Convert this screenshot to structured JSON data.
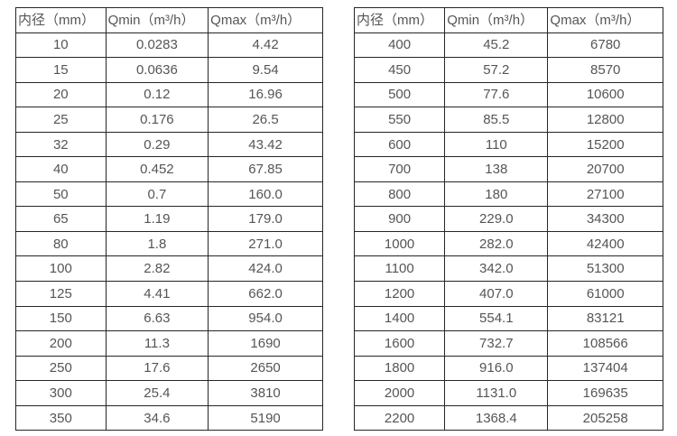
{
  "colors": {
    "background": "#ffffff",
    "border": "#262626",
    "text": "#555555"
  },
  "chart_data": [
    {
      "type": "table",
      "title": "",
      "columns": [
        "内径（mm）",
        "Qmin（m³/h）",
        "Qmax（m³/h）"
      ],
      "rows": [
        [
          "10",
          "0.0283",
          "4.42"
        ],
        [
          "15",
          "0.0636",
          "9.54"
        ],
        [
          "20",
          "0.12",
          "16.96"
        ],
        [
          "25",
          "0.176",
          "26.5"
        ],
        [
          "32",
          "0.29",
          "43.42"
        ],
        [
          "40",
          "0.452",
          "67.85"
        ],
        [
          "50",
          "0.7",
          "160.0"
        ],
        [
          "65",
          "1.19",
          "179.0"
        ],
        [
          "80",
          "1.8",
          "271.0"
        ],
        [
          "100",
          "2.82",
          "424.0"
        ],
        [
          "125",
          "4.41",
          "662.0"
        ],
        [
          "150",
          "6.63",
          "954.0"
        ],
        [
          "200",
          "11.3",
          "1690"
        ],
        [
          "250",
          "17.6",
          "2650"
        ],
        [
          "300",
          "25.4",
          "3810"
        ],
        [
          "350",
          "34.6",
          "5190"
        ]
      ]
    },
    {
      "type": "table",
      "title": "",
      "columns": [
        "内径（mm）",
        "Qmin（m³/h）",
        "Qmax（m³/h）"
      ],
      "rows": [
        [
          "400",
          "45.2",
          "6780"
        ],
        [
          "450",
          "57.2",
          "8570"
        ],
        [
          "500",
          "77.6",
          "10600"
        ],
        [
          "550",
          "85.5",
          "12800"
        ],
        [
          "600",
          "110",
          "15200"
        ],
        [
          "700",
          "138",
          "20700"
        ],
        [
          "800",
          "180",
          "27100"
        ],
        [
          "900",
          "229.0",
          "34300"
        ],
        [
          "1000",
          "282.0",
          "42400"
        ],
        [
          "1100",
          "342.0",
          "51300"
        ],
        [
          "1200",
          "407.0",
          "61000"
        ],
        [
          "1400",
          "554.1",
          "83121"
        ],
        [
          "1600",
          "732.7",
          "108566"
        ],
        [
          "1800",
          "916.0",
          "137404"
        ],
        [
          "2000",
          "1131.0",
          "169635"
        ],
        [
          "2200",
          "1368.4",
          "205258"
        ]
      ]
    }
  ]
}
